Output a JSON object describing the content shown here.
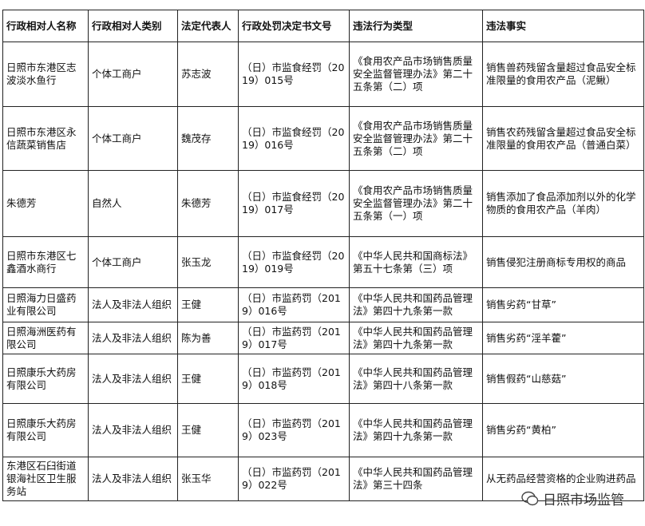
{
  "table": {
    "header": [
      "行政相对人名称",
      "行政相对人类别",
      "法定代表人",
      "行政处罚决定书文号",
      "违法行为类型",
      "违法事实"
    ],
    "rows": [
      [
        "日照市东港区志波淡水鱼行",
        "个体工商户",
        "苏志波",
        "（日）市监食经罚（2019）015号",
        "《食用农产品市场销售质量安全监督管理办法》第二十五条第（二）项",
        "销售兽药残留含量超过食品安全标准限量的食用农产品（泥鳅）"
      ],
      [
        "日照市东港区永信蔬菜销售店",
        "个体工商户",
        "魏茂存",
        "（日）市监食经罚（2019）016号",
        "《食用农产品市场销售质量安全监督管理办法》第二十五条第（二）项",
        "销售农药残留含量超过食品安全标准限量的食用农产品（普通白菜）"
      ],
      [
        "朱德芳",
        "自然人",
        "朱德芳",
        "（日）市监食经罚（2019）017号",
        "《食用农产品市场销售质量安全监督管理办法》第二十五条第（一）项",
        "销售添加了食品添加剂以外的化学物质的食用农产品（羊肉）"
      ],
      [
        "日照市东港区七鑫酒水商行",
        "个体工商户",
        "张玉龙",
        "（日）市监食经罚（2019）019号",
        "《中华人民共和国商标法》第五十七条第（三）项",
        "销售侵犯注册商标专用权的商品"
      ],
      [
        "日照海力日盛药业有限公司",
        "法人及非法人组织",
        "王健",
        "（日）市监药罚（2019）016号",
        "《中华人民共和国药品管理法》第四十九条第一款",
        "销售劣药“甘草”"
      ],
      [
        "日照海洲医药有限公司",
        "法人及非法人组织",
        "陈为善",
        "（日）市监药罚（2019）017号",
        "《中华人民共和国药品管理法》第四十九条第一款",
        "销售劣药“淫羊藿”"
      ],
      [
        "日照康乐大药房有限公司",
        "法人及非法人组织",
        "王健",
        "（日）市监药罚（2019）018号",
        "《中华人民共和国药品管理法》第四十八条第一款",
        "销售假药“山慈菇”"
      ],
      [
        "日照康乐大药房有限公司",
        "法人及非法人组织",
        "王健",
        "（日）市监药罚（2019）023号",
        "《中华人民共和国药品管理法》第四十九条第一款",
        "销售劣药“黄柏”"
      ],
      [
        "东港区石臼街道银海社区卫生服务站",
        "法人及非法人组织",
        "张玉华",
        "（日）市监药罚（2019）022号",
        "《中华人民共和国药品管理法》第三十四条",
        "从无药品经营资格的企业购进药品"
      ]
    ]
  },
  "watermark": "日照市场监管"
}
